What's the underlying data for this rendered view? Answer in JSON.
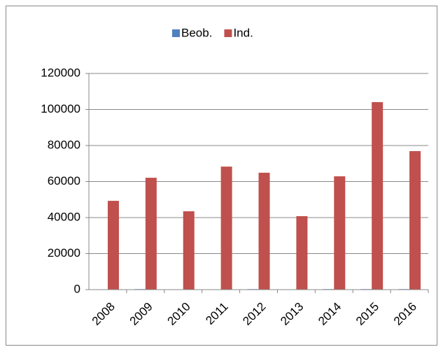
{
  "chart_data": {
    "type": "bar",
    "categories": [
      "2008",
      "2009",
      "2010",
      "2011",
      "2012",
      "2013",
      "2014",
      "2015",
      "2016"
    ],
    "series": [
      {
        "name": "Beob.",
        "color": "#4f81bd",
        "values": [
          200,
          300,
          200,
          200,
          300,
          200,
          300,
          300,
          300
        ]
      },
      {
        "name": "Ind.",
        "color": "#c0504d",
        "values": [
          49300,
          62100,
          43500,
          68300,
          64900,
          40800,
          62900,
          104100,
          76900
        ]
      }
    ],
    "ylim": [
      0,
      120000
    ],
    "yticks": [
      0,
      20000,
      40000,
      60000,
      80000,
      100000,
      120000
    ],
    "grid": true,
    "legend": "top"
  }
}
